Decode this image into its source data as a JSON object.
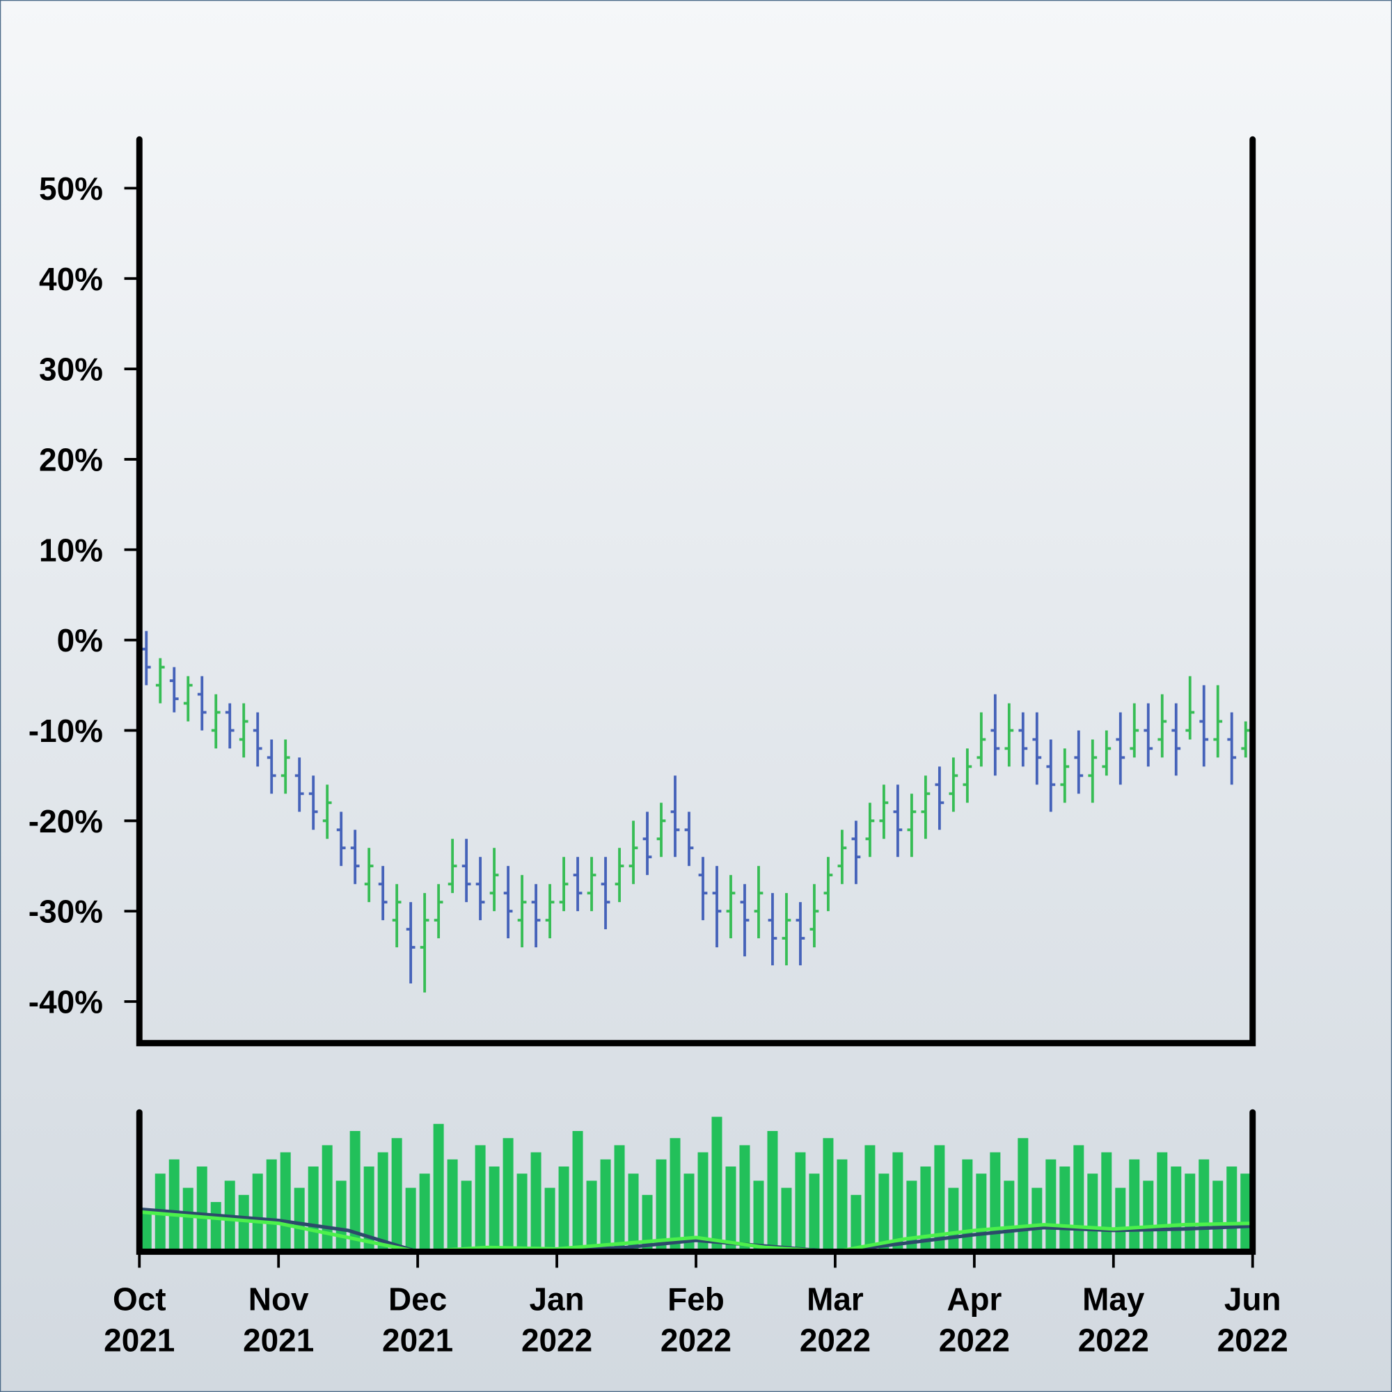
{
  "chart_data": [
    {
      "type": "ohlc",
      "up_color": "#37bd55",
      "down_color": "#4562b9",
      "xlim": [
        0,
        8
      ],
      "ylim": [
        -44.6,
        55.4
      ],
      "yticks": [
        {
          "value": 50,
          "label": "50%"
        },
        {
          "value": 40,
          "label": "40%"
        },
        {
          "value": 30,
          "label": "30%"
        },
        {
          "value": 20,
          "label": "20%"
        },
        {
          "value": 10,
          "label": "10%"
        },
        {
          "value": 0,
          "label": "0%"
        },
        {
          "value": -10,
          "label": "-10%"
        },
        {
          "value": -20,
          "label": "-20%"
        },
        {
          "value": -30,
          "label": "-30%"
        },
        {
          "value": -40,
          "label": "-40%"
        }
      ],
      "x": [
        0.05,
        0.15,
        0.25,
        0.35,
        0.45,
        0.55,
        0.65,
        0.75,
        0.85,
        0.95,
        1.05,
        1.15,
        1.25,
        1.35,
        1.45,
        1.55,
        1.65,
        1.75,
        1.85,
        1.95,
        2.05,
        2.15,
        2.25,
        2.35,
        2.45,
        2.55,
        2.65,
        2.75,
        2.85,
        2.95,
        3.05,
        3.15,
        3.25,
        3.35,
        3.45,
        3.55,
        3.65,
        3.75,
        3.85,
        3.95,
        4.05,
        4.15,
        4.25,
        4.35,
        4.45,
        4.55,
        4.65,
        4.75,
        4.85,
        4.95,
        5.05,
        5.15,
        5.25,
        5.35,
        5.45,
        5.55,
        5.65,
        5.75,
        5.85,
        5.95,
        6.05,
        6.15,
        6.25,
        6.35,
        6.45,
        6.55,
        6.65,
        6.75,
        6.85,
        6.95,
        7.05,
        7.15,
        7.25,
        7.35,
        7.45,
        7.55,
        7.65,
        7.75,
        7.85,
        7.95
      ],
      "open": [
        -1,
        -5,
        -4.5,
        -7,
        -6,
        -10,
        -8,
        -11,
        -10,
        -13,
        -15,
        -15,
        -17,
        -20,
        -21,
        -23,
        -27,
        -27,
        -31,
        -32,
        -34,
        -31,
        -27,
        -25,
        -27,
        -28,
        -28,
        -31,
        -29,
        -31,
        -29,
        -26,
        -28,
        -27,
        -27,
        -25,
        -22,
        -22,
        -19,
        -21,
        -26,
        -28,
        -30,
        -29,
        -30,
        -31,
        -33,
        -31,
        -32,
        -28,
        -25,
        -22,
        -22,
        -20,
        -19,
        -21,
        -19,
        -16,
        -17,
        -16,
        -13,
        -10,
        -12,
        -10,
        -11,
        -14,
        -16,
        -13,
        -15,
        -14,
        -11,
        -12,
        -10,
        -11,
        -10,
        -10,
        -9,
        -11,
        -11,
        -12
      ],
      "high": [
        1,
        -2,
        -3,
        -4,
        -4,
        -6,
        -7,
        -7,
        -8,
        -11,
        -11,
        -13,
        -15,
        -16,
        -19,
        -21,
        -23,
        -25,
        -27,
        -29,
        -28,
        -27,
        -22,
        -22,
        -24,
        -23,
        -25,
        -26,
        -27,
        -27,
        -24,
        -24,
        -24,
        -24,
        -23,
        -20,
        -19,
        -18,
        -15,
        -19,
        -24,
        -25,
        -26,
        -27,
        -25,
        -28,
        -28,
        -29,
        -27,
        -24,
        -21,
        -20,
        -18,
        -16,
        -16,
        -17,
        -15,
        -14,
        -13,
        -12,
        -8,
        -6,
        -7,
        -8,
        -8,
        -11,
        -12,
        -10,
        -11,
        -10,
        -8,
        -7,
        -7,
        -6,
        -7,
        -4,
        -5,
        -5,
        -8,
        -9
      ],
      "low": [
        -5,
        -7,
        -8,
        -9,
        -10,
        -12,
        -12,
        -13,
        -14,
        -17,
        -17,
        -19,
        -21,
        -22,
        -25,
        -27,
        -29,
        -31,
        -34,
        -38,
        -39,
        -33,
        -28,
        -29,
        -31,
        -30,
        -33,
        -34,
        -34,
        -33,
        -30,
        -30,
        -30,
        -32,
        -29,
        -27,
        -26,
        -24,
        -24,
        -25,
        -31,
        -34,
        -33,
        -35,
        -33,
        -36,
        -36,
        -36,
        -34,
        -30,
        -27,
        -27,
        -24,
        -22,
        -24,
        -24,
        -22,
        -21,
        -19,
        -18,
        -14,
        -15,
        -14,
        -14,
        -16,
        -19,
        -18,
        -17,
        -18,
        -15,
        -16,
        -13,
        -14,
        -13,
        -15,
        -11,
        -14,
        -13,
        -16,
        -13
      ],
      "close": [
        -3,
        -3,
        -6.5,
        -5,
        -8,
        -8,
        -10,
        -9,
        -12,
        -15,
        -13,
        -17,
        -19,
        -18,
        -23,
        -25,
        -25,
        -29,
        -29,
        -34,
        -31,
        -29,
        -25,
        -27,
        -29,
        -26,
        -30,
        -29,
        -31,
        -29,
        -27,
        -28,
        -26,
        -29,
        -25,
        -23,
        -24,
        -20,
        -21,
        -23,
        -28,
        -30,
        -28,
        -31,
        -28,
        -33,
        -31,
        -33,
        -30,
        -26,
        -23,
        -24,
        -20,
        -18,
        -21,
        -19,
        -17,
        -18,
        -15,
        -14,
        -11,
        -12,
        -10,
        -12,
        -13,
        -16,
        -14,
        -15,
        -13,
        -12,
        -13,
        -10,
        -12,
        -9,
        -12,
        -8,
        -11,
        -9,
        -13,
        -10
      ]
    },
    {
      "type": "bar",
      "color": "#22c05a",
      "xlim": [
        0,
        8
      ],
      "ylim": [
        0,
        100
      ],
      "xticks": [
        {
          "value": 0,
          "label": "Oct 2021"
        },
        {
          "value": 1,
          "label": "Nov 2021"
        },
        {
          "value": 2,
          "label": "Dec 2021"
        },
        {
          "value": 3,
          "label": "Jan 2022"
        },
        {
          "value": 4,
          "label": "Feb 2022"
        },
        {
          "value": 5,
          "label": "Mar 2022"
        },
        {
          "value": 6,
          "label": "Apr 2022"
        },
        {
          "value": 7,
          "label": "May 2022"
        },
        {
          "value": 8,
          "label": "Jun 2022"
        }
      ],
      "x": [
        0.05,
        0.15,
        0.25,
        0.35,
        0.45,
        0.55,
        0.65,
        0.75,
        0.85,
        0.95,
        1.05,
        1.15,
        1.25,
        1.35,
        1.45,
        1.55,
        1.65,
        1.75,
        1.85,
        1.95,
        2.05,
        2.15,
        2.25,
        2.35,
        2.45,
        2.55,
        2.65,
        2.75,
        2.85,
        2.95,
        3.05,
        3.15,
        3.25,
        3.35,
        3.45,
        3.55,
        3.65,
        3.75,
        3.85,
        3.95,
        4.05,
        4.15,
        4.25,
        4.35,
        4.45,
        4.55,
        4.65,
        4.75,
        4.85,
        4.95,
        5.05,
        5.15,
        5.25,
        5.35,
        5.45,
        5.55,
        5.65,
        5.75,
        5.85,
        5.95,
        6.05,
        6.15,
        6.25,
        6.35,
        6.45,
        6.55,
        6.65,
        6.75,
        6.85,
        6.95,
        7.05,
        7.15,
        7.25,
        7.35,
        7.45,
        7.55,
        7.65,
        7.75,
        7.85,
        7.95
      ],
      "values": [
        30,
        55,
        65,
        45,
        60,
        35,
        50,
        40,
        55,
        65,
        70,
        45,
        60,
        75,
        50,
        85,
        60,
        70,
        80,
        45,
        55,
        90,
        65,
        50,
        75,
        60,
        80,
        55,
        70,
        45,
        60,
        85,
        50,
        65,
        75,
        55,
        40,
        65,
        80,
        55,
        70,
        95,
        60,
        75,
        50,
        85,
        45,
        70,
        55,
        80,
        65,
        40,
        75,
        55,
        70,
        50,
        60,
        75,
        45,
        65,
        55,
        70,
        50,
        80,
        45,
        65,
        60,
        75,
        55,
        70,
        45,
        65,
        50,
        70,
        60,
        55,
        65,
        50,
        60,
        55
      ],
      "lines": [
        {
          "color": "#2c4a6a",
          "x": [
            0,
            0.5,
            1,
            1.5,
            2,
            2.5,
            3,
            3.5,
            4,
            4.5,
            5,
            5.5,
            6,
            6.5,
            7,
            7.5,
            8
          ],
          "values": [
            30,
            26,
            22,
            15,
            0,
            1,
            1,
            3,
            8,
            4,
            0,
            6,
            12,
            17,
            15,
            16,
            18
          ]
        },
        {
          "color": "#4cf04c",
          "x": [
            0,
            0.5,
            1,
            1.5,
            2,
            2.5,
            3,
            3.5,
            4,
            4.5,
            5,
            5.5,
            6,
            6.5,
            7,
            7.5,
            8
          ],
          "values": [
            28,
            24,
            20,
            10,
            0,
            3,
            2,
            6,
            10,
            3,
            0,
            9,
            15,
            19,
            16,
            19,
            20
          ]
        }
      ]
    }
  ]
}
